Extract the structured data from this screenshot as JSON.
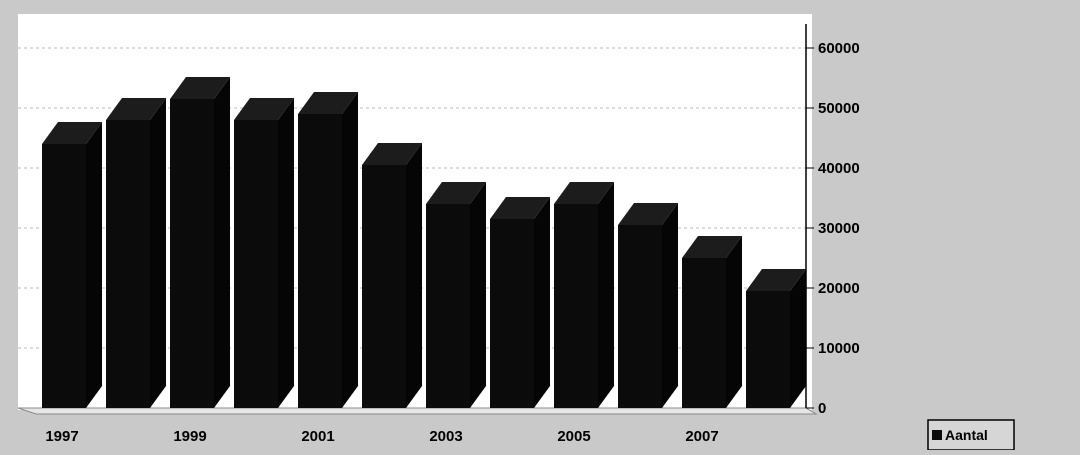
{
  "chart_data": {
    "type": "bar",
    "categories": [
      "1997",
      "1998",
      "1999",
      "2000",
      "2001",
      "2002",
      "2003",
      "2004",
      "2005",
      "2006",
      "2007",
      "2008"
    ],
    "x_tick_labels": [
      "1997",
      "",
      "1999",
      "",
      "2001",
      "",
      "2003",
      "",
      "2005",
      "",
      "2007",
      ""
    ],
    "series": [
      {
        "name": "Aantal",
        "values": [
          44000,
          48000,
          51500,
          48000,
          49000,
          40500,
          34000,
          31500,
          34000,
          30500,
          25000,
          19500
        ]
      }
    ],
    "y_ticks": [
      "0",
      "10000",
      "20000",
      "30000",
      "40000",
      "50000",
      "60000"
    ],
    "ylim": [
      0,
      60000
    ],
    "y_axis_side": "right",
    "grid": true,
    "legend_position": "bottom-right",
    "title": "",
    "xlabel": "",
    "ylabel": "",
    "colors": {
      "bar": "#0b0b0b",
      "bar_top": "#1c1c1c",
      "bar_side": "#050505",
      "plot_background": "#ffffff",
      "page_background": "#c9c9c9",
      "grid": "#bdbdbd",
      "text": "#000000"
    }
  }
}
